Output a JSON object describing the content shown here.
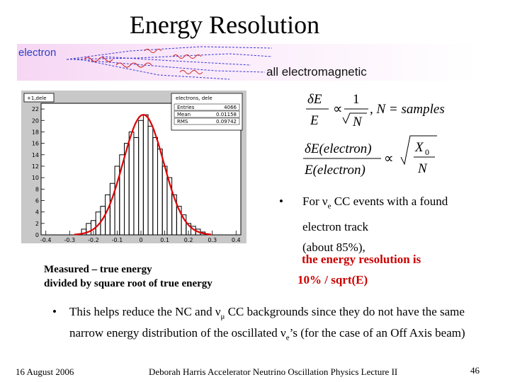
{
  "title": "Energy Resolution",
  "banner": {
    "label": "electron",
    "caption": "all electromagnetic"
  },
  "plot": {
    "hist_title": "+1,dele",
    "stat_title": "electrons, dele",
    "stat_rows": [
      {
        "name": "Entries",
        "value": "4066"
      },
      {
        "name": "Mean",
        "value": "0.01158"
      },
      {
        "name": "RMS",
        "value": "0.09742"
      }
    ],
    "y_ticks": [
      "0",
      "2",
      "4",
      "6",
      "8",
      "10",
      "12",
      "14",
      "16",
      "18",
      "20",
      "22"
    ],
    "x_ticks": [
      "-0.4",
      "-0.3",
      "-0.2",
      "-0.1",
      "0",
      "0.1",
      "0.2",
      "0.3",
      "0.4"
    ]
  },
  "chart_data": {
    "type": "bar",
    "categories": [
      "-0.24",
      "-0.22",
      "-0.20",
      "-0.18",
      "-0.16",
      "-0.14",
      "-0.12",
      "-0.10",
      "-0.08",
      "-0.06",
      "-0.04",
      "-0.02",
      "0.00",
      "0.02",
      "0.04",
      "0.06",
      "0.08",
      "0.10",
      "0.12",
      "0.14",
      "0.16",
      "0.18",
      "0.20",
      "0.22",
      "0.24",
      "0.26"
    ],
    "values": [
      1,
      2,
      2.5,
      4,
      5,
      7,
      9,
      12,
      14,
      16,
      18,
      17,
      20,
      21,
      19,
      17,
      15,
      12,
      10,
      7,
      5,
      3.5,
      2,
      1.5,
      1,
      0.5
    ],
    "fit": "gaussian",
    "xlim": [
      -0.42,
      0.42
    ],
    "ylim": [
      0,
      23
    ]
  },
  "formula1": {
    "lhs_num": "δE",
    "lhs_den": "E",
    "prop": "∝",
    "num": "1",
    "den": "N",
    "tail": ", N = samples"
  },
  "formula2": {
    "num": "δE(electron)",
    "den": "E(electron)",
    "prop": "∝",
    "rnum": "X",
    "rsub": "0",
    "rden": "N"
  },
  "bullet1": {
    "dot": "•",
    "line1_pre": "For ν",
    "line1_sub": "e",
    "line1_post": " CC events with a found",
    "line2": "electron track",
    "line3": "(about 85%),",
    "red1": "the energy resolution is",
    "red2": "10% / sqrt(E)"
  },
  "caption": {
    "line1": "Measured – true energy",
    "line2": "divided by square root of true energy"
  },
  "bullet2": {
    "dot": "•",
    "pre": "This helps reduce the NC and ν",
    "sub": "μ",
    "mid": " CC backgrounds since they do not have the same narrow energy distribution of the oscillated ν",
    "sub2": "e",
    "post": "’s  (for the case of an Off Axis beam)"
  },
  "footer": {
    "date": "16 August 2006",
    "center": "Deborah Harris  Accelerator Neutrino Oscillation Physics Lecture II",
    "page": "46"
  },
  "colors": {
    "hist": "#000000",
    "fit": "#dd0000",
    "banner_label": "#2c3fc4",
    "highlight": "#cc0000"
  }
}
